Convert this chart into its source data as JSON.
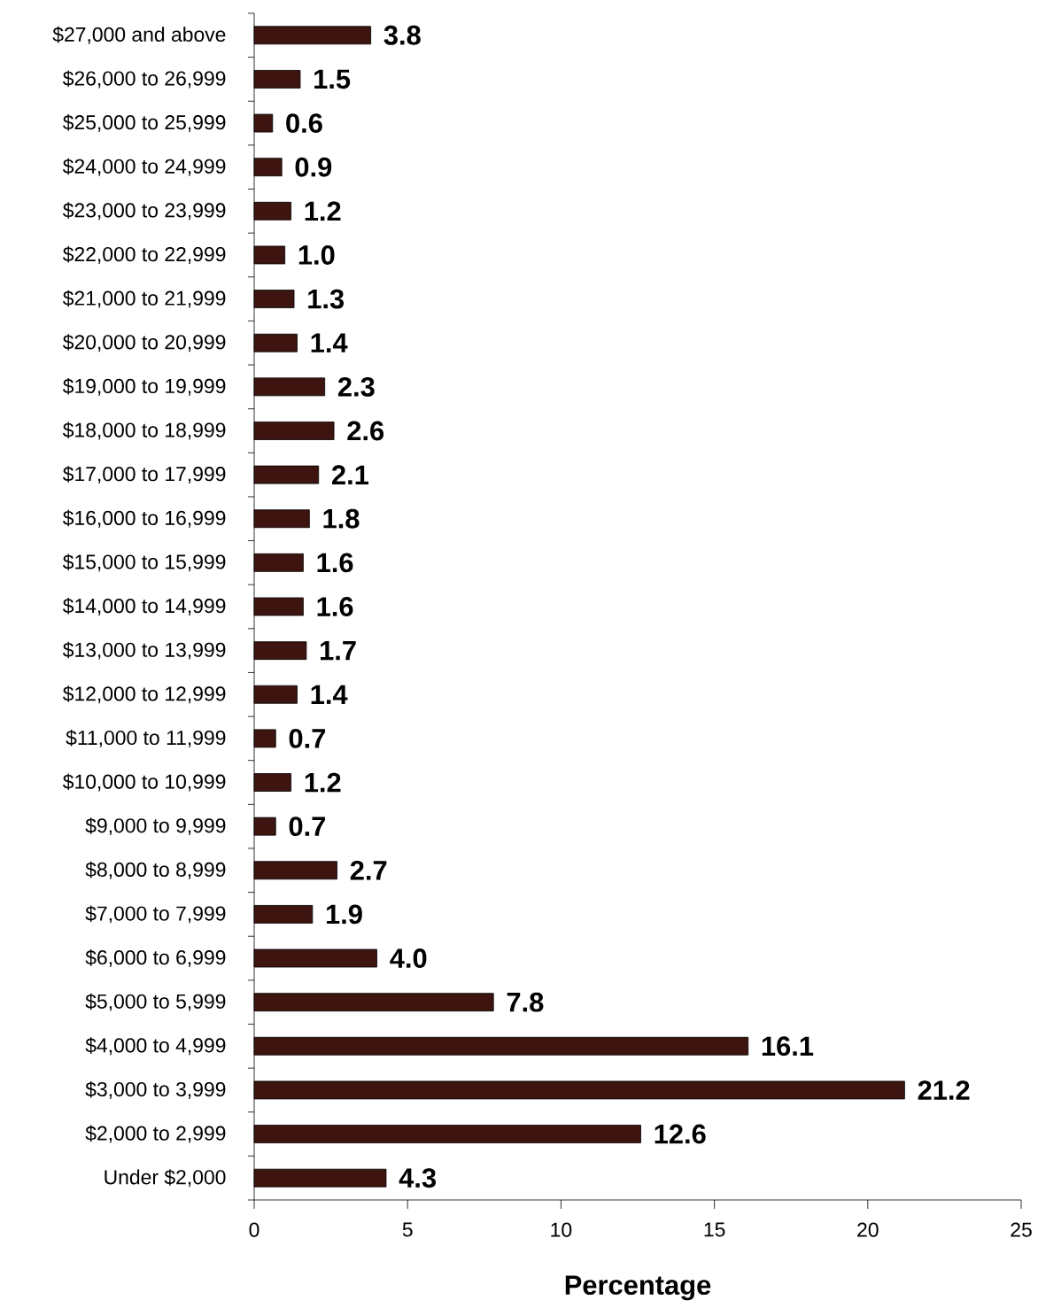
{
  "chart_data": {
    "type": "bar",
    "orientation": "horizontal",
    "xlabel": "Percentage",
    "categories": [
      "$27,000 and above",
      "$26,000 to 26,999",
      "$25,000 to 25,999",
      "$24,000 to 24,999",
      "$23,000 to 23,999",
      "$22,000 to 22,999",
      "$21,000 to 21,999",
      "$20,000 to 20,999",
      "$19,000 to 19,999",
      "$18,000 to 18,999",
      "$17,000 to 17,999",
      "$16,000 to 16,999",
      "$15,000 to 15,999",
      "$14,000 to 14,999",
      "$13,000 to 13,999",
      "$12,000 to 12,999",
      "$11,000 to 11,999",
      "$10,000 to 10,999",
      "$9,000 to 9,999",
      "$8,000 to 8,999",
      "$7,000 to 7,999",
      "$6,000 to 6,999",
      "$5,000 to 5,999",
      "$4,000 to 4,999",
      "$3,000 to 3,999",
      "$2,000 to 2,999",
      "Under $2,000"
    ],
    "values": [
      3.8,
      1.5,
      0.6,
      0.9,
      1.2,
      1.0,
      1.3,
      1.4,
      2.3,
      2.6,
      2.1,
      1.8,
      1.6,
      1.6,
      1.7,
      1.4,
      0.7,
      1.2,
      0.7,
      2.7,
      1.9,
      4.0,
      7.8,
      16.1,
      21.2,
      12.6,
      4.3
    ],
    "value_labels": [
      "3.8",
      "1.5",
      "0.6",
      "0.9",
      "1.2",
      "1.0",
      "1.3",
      "1.4",
      "2.3",
      "2.6",
      "2.1",
      "1.8",
      "1.6",
      "1.6",
      "1.7",
      "1.4",
      "0.7",
      "1.2",
      "0.7",
      "2.7",
      "1.9",
      "4.0",
      "7.8",
      "16.1",
      "21.2",
      "12.6",
      "4.3"
    ],
    "color": "#3d1410",
    "xlim": [
      0,
      25
    ],
    "xticks": [
      0,
      5,
      10,
      15,
      20,
      25
    ]
  }
}
